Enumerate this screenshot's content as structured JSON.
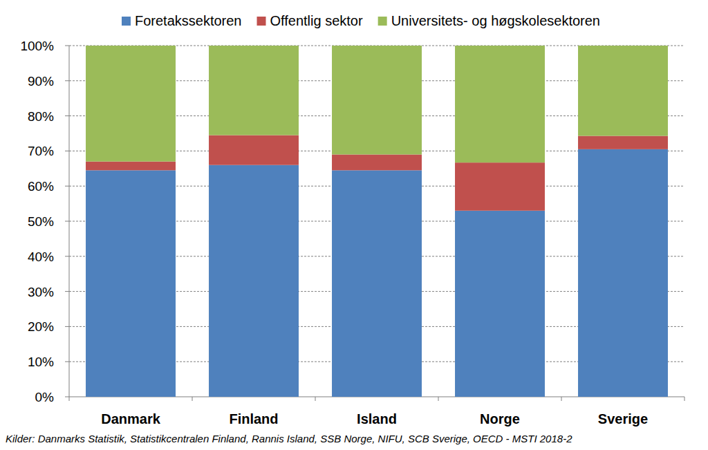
{
  "chart_data": {
    "type": "bar",
    "stacked": true,
    "grid": true,
    "legend": "top",
    "categories": [
      "Danmark",
      "Finland",
      "Island",
      "Norge",
      "Sverige"
    ],
    "series": [
      {
        "name": "Foretakssektoren",
        "color": "#4f81bd",
        "values": [
          64.5,
          66,
          64.5,
          53,
          70.5
        ]
      },
      {
        "name": "Offentlig sektor",
        "color": "#c0504d",
        "values": [
          2.5,
          8.5,
          4.5,
          13.7,
          3.8
        ]
      },
      {
        "name": "Universitets- og høgskolesektoren",
        "color": "#9bbb59",
        "values": [
          33,
          25.5,
          31,
          33.3,
          25.7
        ]
      }
    ],
    "ylim": [
      0,
      100
    ],
    "yticks": [
      {
        "value": 0,
        "label": "0%"
      },
      {
        "value": 10,
        "label": "10%"
      },
      {
        "value": 20,
        "label": "20%"
      },
      {
        "value": 30,
        "label": "30%"
      },
      {
        "value": 40,
        "label": "40%"
      },
      {
        "value": 50,
        "label": "50%"
      },
      {
        "value": 60,
        "label": "60%"
      },
      {
        "value": 70,
        "label": "70%"
      },
      {
        "value": 80,
        "label": "80%"
      },
      {
        "value": 90,
        "label": "90%"
      },
      {
        "value": 100,
        "label": "100%"
      }
    ],
    "source": "Kilder: Danmarks Statistik, Statistikcentralen Finland, Rannis Island, SSB Norge, NIFU, SCB Sverige, OECD - MSTI 2018-2"
  }
}
